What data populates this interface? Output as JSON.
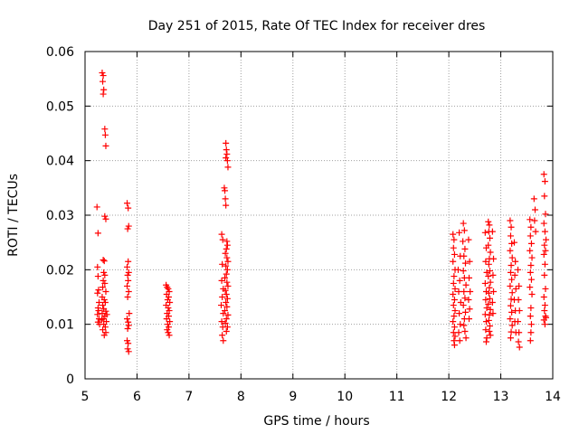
{
  "chart_data": {
    "type": "scatter",
    "title": "Day 251 of 2015, Rate Of TEC Index for receiver dres",
    "xlabel": "GPS time / hours",
    "ylabel": "ROTI / TECUs",
    "xlim": [
      5,
      14
    ],
    "ylim": [
      0,
      0.06
    ],
    "x_ticks": [
      "5",
      "6",
      "7",
      "8",
      "9",
      "10",
      "11",
      "12",
      "13",
      "14"
    ],
    "y_ticks": [
      "0",
      "0.01",
      "0.02",
      "0.03",
      "0.04",
      "0.05",
      "0.06"
    ],
    "grid": true,
    "marker": "+",
    "point_color": "#ff0000",
    "series": [
      {
        "points": [
          [
            5.23,
            0.0315
          ],
          [
            5.25,
            0.0267
          ],
          [
            5.24,
            0.0205
          ],
          [
            5.25,
            0.0188
          ],
          [
            5.26,
            0.0163
          ],
          [
            5.24,
            0.0157
          ],
          [
            5.25,
            0.013
          ],
          [
            5.26,
            0.0125
          ],
          [
            5.24,
            0.0118
          ],
          [
            5.27,
            0.011
          ],
          [
            5.25,
            0.0104
          ],
          [
            5.28,
            0.01
          ],
          [
            5.27,
            0.014
          ],
          [
            5.33,
            0.0561
          ],
          [
            5.35,
            0.0556
          ],
          [
            5.34,
            0.0545
          ],
          [
            5.36,
            0.053
          ],
          [
            5.35,
            0.0522
          ],
          [
            5.38,
            0.0458
          ],
          [
            5.39,
            0.0447
          ],
          [
            5.4,
            0.0427
          ],
          [
            5.38,
            0.0298
          ],
          [
            5.4,
            0.0293
          ],
          [
            5.35,
            0.0218
          ],
          [
            5.37,
            0.0216
          ],
          [
            5.36,
            0.0195
          ],
          [
            5.38,
            0.019
          ],
          [
            5.35,
            0.018
          ],
          [
            5.38,
            0.0175
          ],
          [
            5.34,
            0.0168
          ],
          [
            5.4,
            0.016
          ],
          [
            5.33,
            0.015
          ],
          [
            5.37,
            0.0145
          ],
          [
            5.39,
            0.014
          ],
          [
            5.34,
            0.0135
          ],
          [
            5.36,
            0.0128
          ],
          [
            5.4,
            0.0124
          ],
          [
            5.33,
            0.012
          ],
          [
            5.38,
            0.0115
          ],
          [
            5.35,
            0.011
          ],
          [
            5.41,
            0.0105
          ],
          [
            5.36,
            0.01
          ],
          [
            5.39,
            0.0095
          ],
          [
            5.34,
            0.009
          ],
          [
            5.4,
            0.0085
          ],
          [
            5.37,
            0.008
          ],
          [
            5.42,
            0.0118
          ],
          [
            5.32,
            0.0108
          ],
          [
            5.81,
            0.0322
          ],
          [
            5.83,
            0.0313
          ],
          [
            5.84,
            0.028
          ],
          [
            5.82,
            0.0275
          ],
          [
            5.83,
            0.0215
          ],
          [
            5.81,
            0.0205
          ],
          [
            5.84,
            0.0195
          ],
          [
            5.82,
            0.019
          ],
          [
            5.83,
            0.018
          ],
          [
            5.81,
            0.017
          ],
          [
            5.84,
            0.016
          ],
          [
            5.82,
            0.015
          ],
          [
            5.85,
            0.012
          ],
          [
            5.81,
            0.011
          ],
          [
            5.83,
            0.0104
          ],
          [
            5.84,
            0.0098
          ],
          [
            5.82,
            0.0092
          ],
          [
            5.81,
            0.007
          ],
          [
            5.83,
            0.0065
          ],
          [
            5.82,
            0.0055
          ],
          [
            5.84,
            0.005
          ],
          [
            6.56,
            0.0172
          ],
          [
            6.58,
            0.0168
          ],
          [
            6.6,
            0.0165
          ],
          [
            6.62,
            0.016
          ],
          [
            6.57,
            0.0155
          ],
          [
            6.61,
            0.015
          ],
          [
            6.59,
            0.0145
          ],
          [
            6.63,
            0.014
          ],
          [
            6.56,
            0.0135
          ],
          [
            6.6,
            0.013
          ],
          [
            6.62,
            0.0125
          ],
          [
            6.58,
            0.012
          ],
          [
            6.61,
            0.0115
          ],
          [
            6.57,
            0.011
          ],
          [
            6.63,
            0.0105
          ],
          [
            6.59,
            0.01
          ],
          [
            6.61,
            0.0095
          ],
          [
            6.58,
            0.009
          ],
          [
            6.6,
            0.0085
          ],
          [
            6.62,
            0.008
          ],
          [
            7.63,
            0.0265
          ],
          [
            7.65,
            0.0255
          ],
          [
            7.64,
            0.021
          ],
          [
            7.63,
            0.018
          ],
          [
            7.66,
            0.0165
          ],
          [
            7.64,
            0.015
          ],
          [
            7.62,
            0.0135
          ],
          [
            7.66,
            0.012
          ],
          [
            7.63,
            0.0105
          ],
          [
            7.65,
            0.0095
          ],
          [
            7.64,
            0.008
          ],
          [
            7.66,
            0.007
          ],
          [
            7.71,
            0.0432
          ],
          [
            7.72,
            0.042
          ],
          [
            7.73,
            0.0412
          ],
          [
            7.71,
            0.0405
          ],
          [
            7.74,
            0.04
          ],
          [
            7.75,
            0.0388
          ],
          [
            7.68,
            0.035
          ],
          [
            7.69,
            0.0345
          ],
          [
            7.7,
            0.033
          ],
          [
            7.71,
            0.0318
          ],
          [
            7.73,
            0.0252
          ],
          [
            7.74,
            0.0245
          ],
          [
            7.72,
            0.0238
          ],
          [
            7.7,
            0.023
          ],
          [
            7.73,
            0.0222
          ],
          [
            7.75,
            0.0215
          ],
          [
            7.71,
            0.0207
          ],
          [
            7.74,
            0.02
          ],
          [
            7.72,
            0.0192
          ],
          [
            7.69,
            0.0185
          ],
          [
            7.73,
            0.0177
          ],
          [
            7.75,
            0.017
          ],
          [
            7.7,
            0.0162
          ],
          [
            7.72,
            0.0155
          ],
          [
            7.74,
            0.0147
          ],
          [
            7.71,
            0.014
          ],
          [
            7.73,
            0.0132
          ],
          [
            7.69,
            0.0125
          ],
          [
            7.75,
            0.0117
          ],
          [
            7.72,
            0.011
          ],
          [
            7.7,
            0.0102
          ],
          [
            7.74,
            0.0095
          ],
          [
            7.72,
            0.0087
          ],
          [
            12.08,
            0.0265
          ],
          [
            12.1,
            0.0255
          ],
          [
            12.09,
            0.024
          ],
          [
            12.11,
            0.0228
          ],
          [
            12.08,
            0.0215
          ],
          [
            12.12,
            0.02
          ],
          [
            12.1,
            0.0188
          ],
          [
            12.09,
            0.0175
          ],
          [
            12.12,
            0.0165
          ],
          [
            12.08,
            0.0155
          ],
          [
            12.11,
            0.0145
          ],
          [
            12.09,
            0.0135
          ],
          [
            12.12,
            0.0125
          ],
          [
            12.1,
            0.0115
          ],
          [
            12.08,
            0.0105
          ],
          [
            12.11,
            0.0095
          ],
          [
            12.09,
            0.0085
          ],
          [
            12.12,
            0.0078
          ],
          [
            12.1,
            0.007
          ],
          [
            12.11,
            0.0062
          ],
          [
            12.2,
            0.0268
          ],
          [
            12.22,
            0.0225
          ],
          [
            12.18,
            0.02
          ],
          [
            12.21,
            0.018
          ],
          [
            12.19,
            0.016
          ],
          [
            12.23,
            0.014
          ],
          [
            12.2,
            0.012
          ],
          [
            12.22,
            0.01
          ],
          [
            12.19,
            0.0085
          ],
          [
            12.21,
            0.007
          ],
          [
            12.28,
            0.0285
          ],
          [
            12.3,
            0.0272
          ],
          [
            12.27,
            0.0252
          ],
          [
            12.31,
            0.0238
          ],
          [
            12.29,
            0.0225
          ],
          [
            12.32,
            0.0212
          ],
          [
            12.28,
            0.0198
          ],
          [
            12.3,
            0.0185
          ],
          [
            12.33,
            0.0172
          ],
          [
            12.29,
            0.016
          ],
          [
            12.31,
            0.0148
          ],
          [
            12.28,
            0.0135
          ],
          [
            12.32,
            0.0122
          ],
          [
            12.3,
            0.011
          ],
          [
            12.29,
            0.0098
          ],
          [
            12.31,
            0.0087
          ],
          [
            12.33,
            0.0075
          ],
          [
            12.38,
            0.0255
          ],
          [
            12.4,
            0.0215
          ],
          [
            12.39,
            0.0185
          ],
          [
            12.41,
            0.016
          ],
          [
            12.38,
            0.0145
          ],
          [
            12.4,
            0.0128
          ],
          [
            12.39,
            0.011
          ],
          [
            12.7,
            0.0268
          ],
          [
            12.72,
            0.024
          ],
          [
            12.71,
            0.0215
          ],
          [
            12.73,
            0.0195
          ],
          [
            12.7,
            0.0175
          ],
          [
            12.72,
            0.016
          ],
          [
            12.71,
            0.0145
          ],
          [
            12.73,
            0.013
          ],
          [
            12.7,
            0.0118
          ],
          [
            12.72,
            0.0105
          ],
          [
            12.71,
            0.009
          ],
          [
            12.73,
            0.0075
          ],
          [
            12.72,
            0.0068
          ],
          [
            12.76,
            0.0288
          ],
          [
            12.78,
            0.0282
          ],
          [
            12.77,
            0.027
          ],
          [
            12.79,
            0.0258
          ],
          [
            12.76,
            0.0245
          ],
          [
            12.8,
            0.0232
          ],
          [
            12.78,
            0.022
          ],
          [
            12.77,
            0.021
          ],
          [
            12.79,
            0.0198
          ],
          [
            12.76,
            0.0188
          ],
          [
            12.8,
            0.0177
          ],
          [
            12.78,
            0.0167
          ],
          [
            12.77,
            0.0157
          ],
          [
            12.79,
            0.0147
          ],
          [
            12.76,
            0.0137
          ],
          [
            12.8,
            0.0127
          ],
          [
            12.78,
            0.0117
          ],
          [
            12.77,
            0.0107
          ],
          [
            12.79,
            0.0097
          ],
          [
            12.78,
            0.0087
          ],
          [
            12.8,
            0.008
          ],
          [
            12.84,
            0.027
          ],
          [
            12.86,
            0.022
          ],
          [
            12.85,
            0.019
          ],
          [
            12.86,
            0.016
          ],
          [
            12.84,
            0.014
          ],
          [
            12.85,
            0.012
          ],
          [
            13.18,
            0.029
          ],
          [
            13.2,
            0.0278
          ],
          [
            13.19,
            0.0262
          ],
          [
            13.21,
            0.0248
          ],
          [
            13.18,
            0.0235
          ],
          [
            13.22,
            0.0222
          ],
          [
            13.2,
            0.0208
          ],
          [
            13.19,
            0.0195
          ],
          [
            13.21,
            0.0182
          ],
          [
            13.18,
            0.017
          ],
          [
            13.22,
            0.0158
          ],
          [
            13.2,
            0.0146
          ],
          [
            13.19,
            0.0134
          ],
          [
            13.21,
            0.0122
          ],
          [
            13.18,
            0.011
          ],
          [
            13.22,
            0.0098
          ],
          [
            13.2,
            0.0086
          ],
          [
            13.19,
            0.0075
          ],
          [
            13.26,
            0.025
          ],
          [
            13.28,
            0.0215
          ],
          [
            13.27,
            0.019
          ],
          [
            13.29,
            0.0165
          ],
          [
            13.26,
            0.0145
          ],
          [
            13.28,
            0.0125
          ],
          [
            13.27,
            0.0105
          ],
          [
            13.29,
            0.0085
          ],
          [
            13.33,
            0.02
          ],
          [
            13.35,
            0.017
          ],
          [
            13.34,
            0.0145
          ],
          [
            13.36,
            0.0125
          ],
          [
            13.33,
            0.0105
          ],
          [
            13.35,
            0.0085
          ],
          [
            13.34,
            0.0068
          ],
          [
            13.36,
            0.0058
          ],
          [
            13.56,
            0.0292
          ],
          [
            13.58,
            0.0278
          ],
          [
            13.57,
            0.0262
          ],
          [
            13.59,
            0.0248
          ],
          [
            13.56,
            0.0235
          ],
          [
            13.6,
            0.0222
          ],
          [
            13.58,
            0.0208
          ],
          [
            13.57,
            0.0195
          ],
          [
            13.59,
            0.0182
          ],
          [
            13.56,
            0.0168
          ],
          [
            13.6,
            0.0155
          ],
          [
            13.58,
            0.013
          ],
          [
            13.57,
            0.0115
          ],
          [
            13.59,
            0.01
          ],
          [
            13.58,
            0.0085
          ],
          [
            13.57,
            0.007
          ],
          [
            13.64,
            0.033
          ],
          [
            13.66,
            0.031
          ],
          [
            13.65,
            0.029
          ],
          [
            13.67,
            0.027
          ],
          [
            13.83,
            0.0375
          ],
          [
            13.85,
            0.0362
          ],
          [
            13.84,
            0.0335
          ],
          [
            13.86,
            0.0302
          ],
          [
            13.83,
            0.0285
          ],
          [
            13.85,
            0.027
          ],
          [
            13.87,
            0.0255
          ],
          [
            13.84,
            0.0245
          ],
          [
            13.86,
            0.0235
          ],
          [
            13.83,
            0.0228
          ],
          [
            13.85,
            0.021
          ],
          [
            13.84,
            0.019
          ],
          [
            13.86,
            0.0165
          ],
          [
            13.83,
            0.015
          ],
          [
            13.85,
            0.0135
          ],
          [
            13.84,
            0.0125
          ],
          [
            13.86,
            0.0115
          ],
          [
            13.83,
            0.0108
          ],
          [
            13.85,
            0.01
          ],
          [
            13.87,
            0.0112
          ]
        ]
      }
    ]
  }
}
